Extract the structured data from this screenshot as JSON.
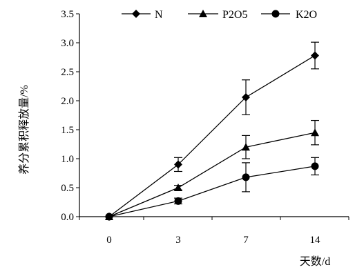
{
  "chart_data": {
    "type": "line",
    "categories": [
      "0",
      "3",
      "7",
      "14"
    ],
    "xlabel": "天数/d",
    "ylabel": "养分累积释放量/%",
    "ylim": [
      0,
      3.5
    ],
    "yticks": [
      "0.0",
      "0.5",
      "1.0",
      "1.5",
      "2.0",
      "2.5",
      "3.0",
      "3.5"
    ],
    "grid": false,
    "legend_position": "top",
    "series": [
      {
        "name": "N",
        "marker": "diamond",
        "values": [
          0,
          0.9,
          2.06,
          2.78
        ],
        "errors": [
          0,
          0.12,
          0.3,
          0.23
        ]
      },
      {
        "name": "P2O5",
        "marker": "triangle",
        "values": [
          0,
          0.5,
          1.2,
          1.45
        ],
        "errors": [
          0,
          0.04,
          0.2,
          0.21
        ]
      },
      {
        "name": "K2O",
        "marker": "circle",
        "values": [
          0,
          0.27,
          0.68,
          0.87
        ],
        "errors": [
          0,
          0.05,
          0.25,
          0.15
        ]
      }
    ]
  }
}
